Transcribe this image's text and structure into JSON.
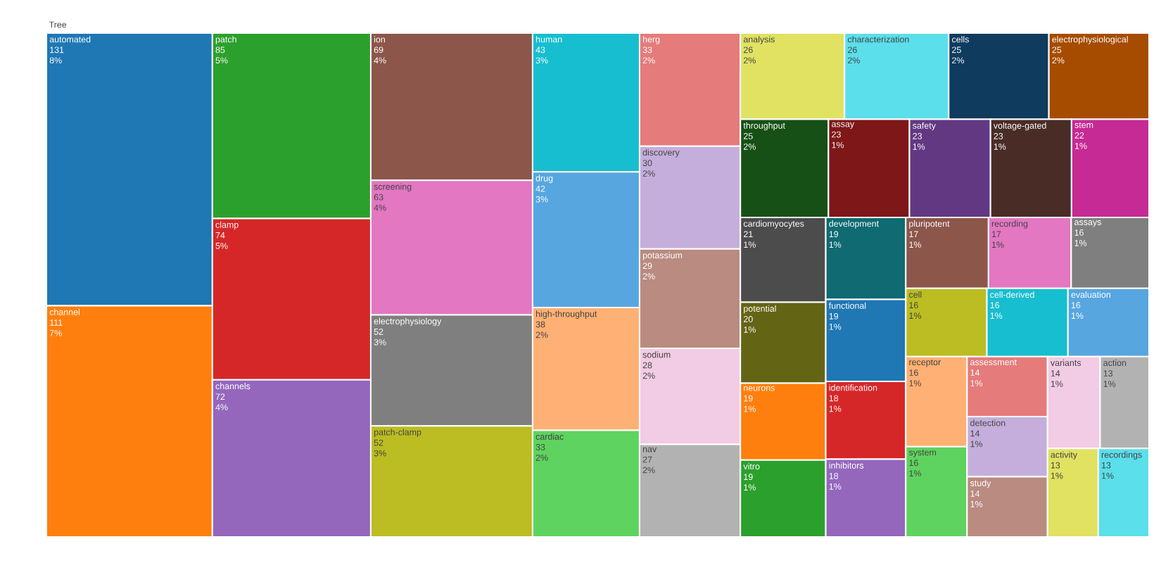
{
  "chart_data": {
    "type": "other",
    "title": "Tree",
    "categories": [
      "automated",
      "channel",
      "patch",
      "clamp",
      "channels",
      "ion",
      "screening",
      "electrophysiology",
      "patch-clamp",
      "human",
      "drug",
      "high-throughput",
      "cardiac",
      "herg",
      "discovery",
      "potassium",
      "sodium",
      "nav",
      "analysis",
      "characterization",
      "cells",
      "electrophysiological",
      "throughput",
      "assay",
      "safety",
      "voltage-gated",
      "stem",
      "cardiomyocytes",
      "potential",
      "neurons",
      "vitro",
      "development",
      "functional",
      "identification",
      "inhibitors",
      "pluripotent",
      "recording",
      "assays",
      "cell",
      "cell-derived",
      "evaluation",
      "receptor",
      "system",
      "assessment",
      "detection",
      "study",
      "variants",
      "action",
      "activity",
      "recordings"
    ],
    "values": [
      131,
      111,
      85,
      74,
      72,
      69,
      63,
      52,
      52,
      43,
      42,
      38,
      33,
      33,
      30,
      29,
      28,
      27,
      26,
      26,
      25,
      25,
      25,
      23,
      23,
      23,
      22,
      21,
      20,
      19,
      19,
      19,
      19,
      18,
      18,
      17,
      17,
      16,
      16,
      16,
      16,
      16,
      16,
      14,
      14,
      14,
      14,
      13,
      13,
      13
    ],
    "annotations": [
      "8%",
      "7%",
      "5%",
      "5%",
      "4%",
      "4%",
      "4%",
      "3%",
      "3%",
      "3%",
      "3%",
      "2%",
      "2%",
      "2%",
      "2%",
      "2%",
      "2%",
      "2%",
      "2%",
      "2%",
      "2%",
      "2%",
      "2%",
      "1%",
      "1%",
      "1%",
      "1%",
      "1%",
      "1%",
      "1%",
      "1%",
      "1%",
      "1%",
      "1%",
      "1%",
      "1%",
      "1%",
      "1%",
      "1%",
      "1%",
      "1%",
      "1%",
      "1%",
      "1%",
      "1%",
      "1%",
      "1%",
      "1%",
      "1%",
      "1%"
    ],
    "data_labels": true,
    "colors": [
      "#1f77b4",
      "#ff7f0e",
      "#2ca02c",
      "#d62728",
      "#9467bd",
      "#8c564b",
      "#e377c2",
      "#7f7f7f",
      "#bcbd22",
      "#17becf",
      "#57a6e0",
      "#ffb074",
      "#5fd35f",
      "#e57b7b",
      "#c5aedb",
      "#ba8b80",
      "#f2cbe4",
      "#b2b2b2",
      "#e1e262",
      "#5bdfeb",
      "#0f3b5e",
      "#a64c00",
      "#165016",
      "#7e1717",
      "#623882",
      "#492c26",
      "#c62a94",
      "#4c4c4c",
      "#646415",
      "#ff7f0e",
      "#2ca02c",
      "#0f6a72",
      "#1f77b4",
      "#d62728",
      "#9467bd",
      "#8c564b",
      "#e377c2",
      "#7f7f7f",
      "#bcbd22",
      "#17becf",
      "#57a6e0",
      "#ffb074",
      "#5fd35f",
      "#e57b7b",
      "#c5aedb",
      "#ba8b80",
      "#f2cbe4",
      "#b2b2b2",
      "#e1e262",
      "#5bdfeb"
    ]
  }
}
